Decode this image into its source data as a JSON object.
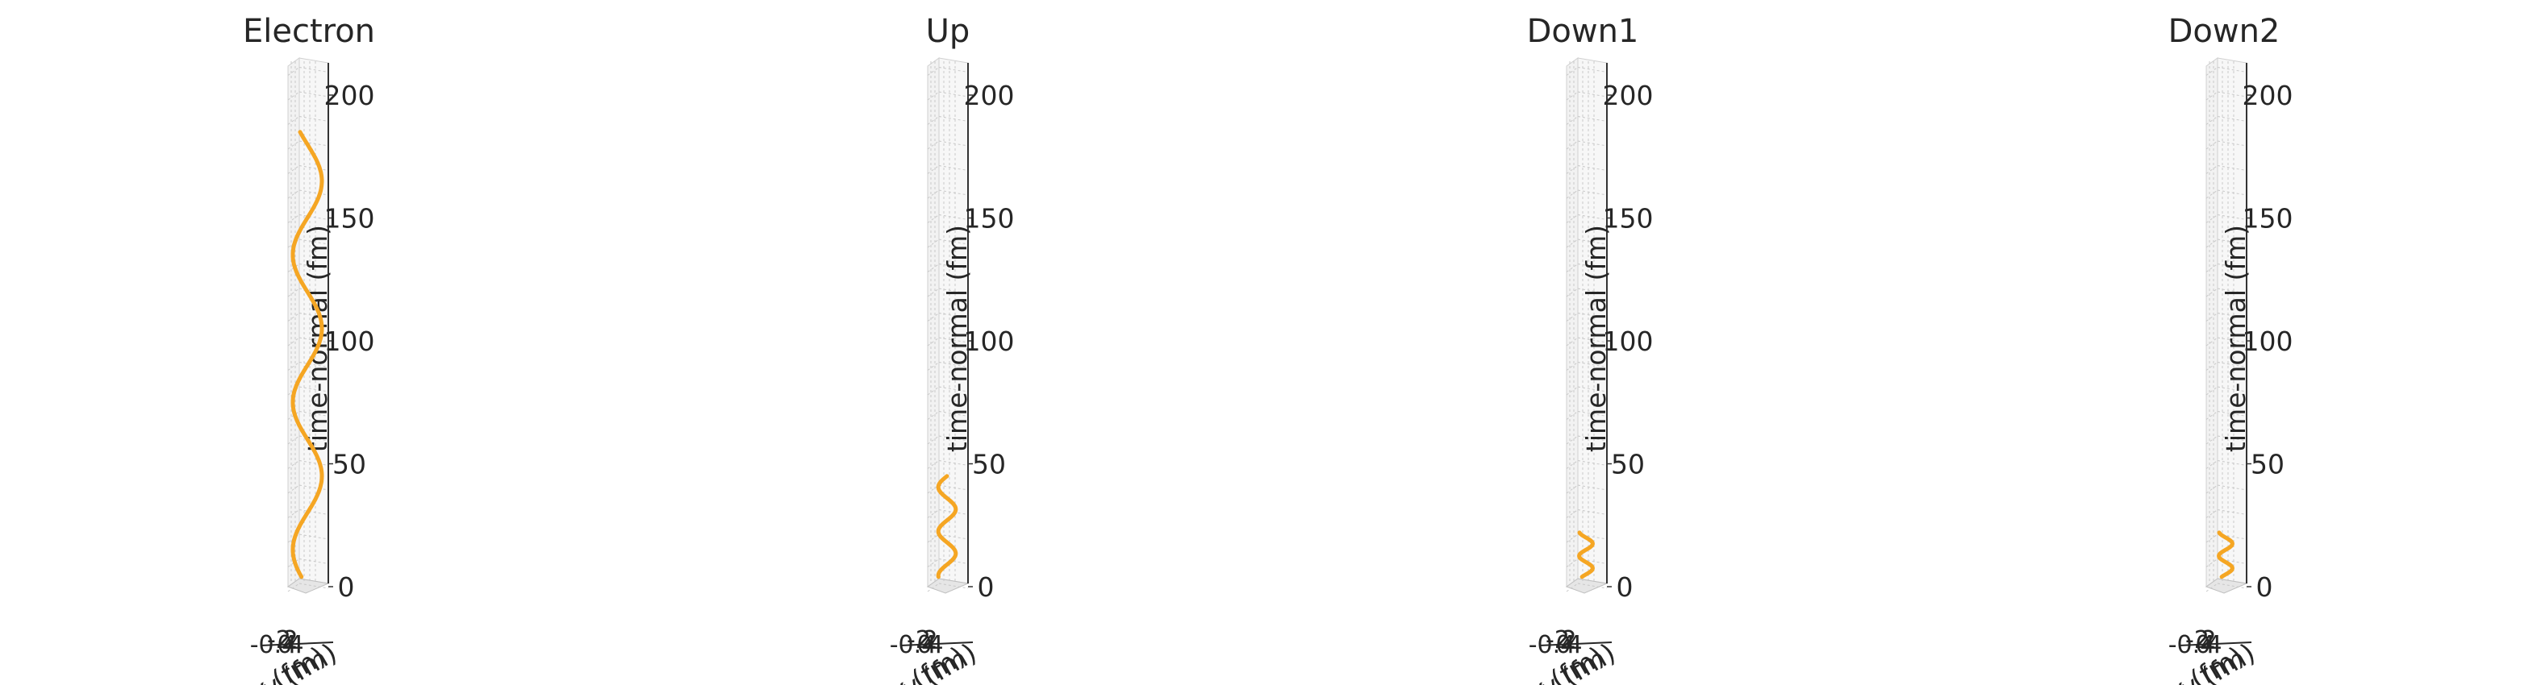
{
  "chart_data": [
    {
      "type": "line",
      "title": "Electron",
      "zlabel": "time-normal (fm)",
      "xlabel": "x (fm)",
      "ylabel": "y (fm)",
      "zlim": [
        0,
        210
      ],
      "z_ticks": [
        "0",
        "50",
        "100",
        "150",
        "200"
      ],
      "series_color": "#f5a623",
      "series": [
        {
          "name": "",
          "amplitude_fm": 1.5,
          "period_fm": 60,
          "t_end_fm": 185
        }
      ]
    },
    {
      "type": "line",
      "title": "Up",
      "zlabel": "time-normal (fm)",
      "xlabel": "x (fm)",
      "ylabel": "y (fm)",
      "zlim": [
        0,
        210
      ],
      "z_ticks": [
        "0",
        "50",
        "100",
        "150",
        "200"
      ],
      "series_color": "#f5a623",
      "series": [
        {
          "name": "",
          "amplitude_fm": 0.9,
          "period_fm": 18,
          "t_end_fm": 45
        }
      ]
    },
    {
      "type": "line",
      "title": "Down1",
      "zlabel": "time-normal (fm)",
      "xlabel": "x (fm)",
      "ylabel": "y (fm)",
      "zlim": [
        0,
        210
      ],
      "z_ticks": [
        "0",
        "50",
        "100",
        "150",
        "200"
      ],
      "series_color": "#f5a623",
      "series": [
        {
          "name": "",
          "amplitude_fm": 0.7,
          "period_fm": 10,
          "t_end_fm": 22
        }
      ]
    },
    {
      "type": "line",
      "title": "Down2",
      "zlabel": "time-normal (fm)",
      "xlabel": "x (fm)",
      "ylabel": "y (fm)",
      "zlim": [
        0,
        210
      ],
      "z_ticks": [
        "0",
        "50",
        "100",
        "150",
        "200"
      ],
      "series_color": "#f5a623",
      "series": [
        {
          "name": "",
          "amplitude_fm": 0.7,
          "period_fm": 10,
          "t_end_fm": 22
        }
      ]
    }
  ]
}
